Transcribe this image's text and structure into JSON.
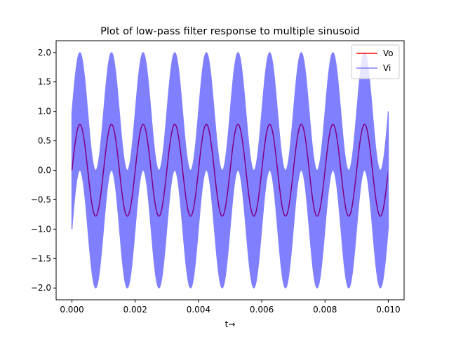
{
  "chart_data": {
    "type": "line",
    "title": "Plot of low-pass filter response to multiple sinusoid",
    "xlabel": "t→",
    "ylabel": "",
    "xlim": [
      -0.0005,
      0.0105
    ],
    "ylim": [
      -2.2,
      2.2
    ],
    "xticks": [
      0.0,
      0.002,
      0.004,
      0.006,
      0.008,
      0.01
    ],
    "xtick_labels": [
      "0.000",
      "0.002",
      "0.004",
      "0.006",
      "0.008",
      "0.010"
    ],
    "yticks": [
      -2.0,
      -1.5,
      -1.0,
      -0.5,
      0.0,
      0.5,
      1.0,
      1.5,
      2.0
    ],
    "ytick_labels": [
      "−2.0",
      "−1.5",
      "−1.0",
      "−0.5",
      "0.0",
      "0.5",
      "1.0",
      "1.5",
      "2.0"
    ],
    "grid": false,
    "legend_position": "top-right",
    "series": [
      {
        "name": "Vo",
        "color": "#ff0000",
        "description": "filtered output, sinusoid with amplitude 0.78 and period 0.001",
        "amplitude": 0.78,
        "period": 0.001
      },
      {
        "name": "Vi",
        "color": "#8080ff",
        "description": "input, sum of a 1 kHz and a high-frequency sinusoid, amplitude 1 each",
        "low_amplitude": 1.0,
        "low_period": 0.001,
        "high_amplitude": 1.0
      }
    ],
    "overlap_color": "#800080",
    "t_range": [
      0.0,
      0.01
    ]
  }
}
